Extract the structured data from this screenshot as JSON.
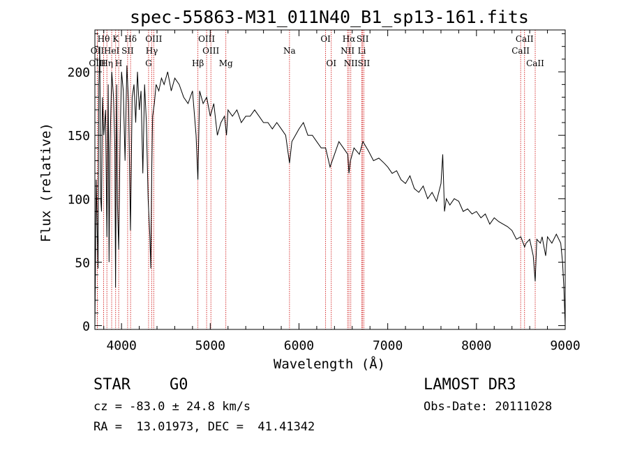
{
  "chart_data": {
    "type": "line",
    "title": "spec-55863-M31_011N40_B1_sp13-161.fits",
    "xlabel": "Wavelength (Å)",
    "ylabel": "Flux (relative)",
    "xlim": [
      3700,
      9000
    ],
    "ylim": [
      -3,
      233
    ],
    "xticks": [
      4000,
      5000,
      6000,
      7000,
      8000,
      9000
    ],
    "xtick_labels": [
      "4000",
      "5000",
      "6000",
      "7000",
      "8000",
      "9000"
    ],
    "yticks": [
      0,
      50,
      100,
      150,
      200
    ],
    "ytick_labels": [
      "0",
      "50",
      "100",
      "150",
      "200"
    ],
    "grid": false,
    "series": [
      {
        "name": "flux",
        "color": "#000000",
        "x": [
          3700,
          3715,
          3725,
          3735,
          3745,
          3755,
          3765,
          3775,
          3785,
          3800,
          3820,
          3835,
          3850,
          3860,
          3870,
          3890,
          3910,
          3925,
          3933,
          3945,
          3955,
          3968,
          3985,
          4000,
          4020,
          4040,
          4060,
          4080,
          4101,
          4120,
          4140,
          4160,
          4180,
          4200,
          4220,
          4240,
          4260,
          4280,
          4300,
          4320,
          4330,
          4340,
          4350,
          4370,
          4390,
          4420,
          4450,
          4480,
          4520,
          4560,
          4600,
          4650,
          4700,
          4750,
          4800,
          4840,
          4861,
          4880,
          4920,
          4960,
          5000,
          5040,
          5080,
          5120,
          5160,
          5183,
          5200,
          5250,
          5300,
          5350,
          5400,
          5450,
          5500,
          5550,
          5600,
          5650,
          5700,
          5750,
          5800,
          5850,
          5893,
          5920,
          5960,
          6000,
          6050,
          6100,
          6150,
          6200,
          6250,
          6300,
          6350,
          6400,
          6450,
          6500,
          6550,
          6563,
          6580,
          6620,
          6680,
          6720,
          6780,
          6840,
          6900,
          6960,
          7000,
          7050,
          7100,
          7150,
          7200,
          7250,
          7300,
          7350,
          7400,
          7450,
          7500,
          7550,
          7600,
          7620,
          7640,
          7660,
          7700,
          7750,
          7800,
          7850,
          7900,
          7950,
          8000,
          8050,
          8100,
          8150,
          8200,
          8250,
          8300,
          8350,
          8400,
          8450,
          8500,
          8542,
          8560,
          8600,
          8640,
          8662,
          8680,
          8720,
          8740,
          8780,
          8800,
          8820,
          8850,
          8900,
          8950,
          8970,
          8985,
          9000
        ],
        "values": [
          0,
          115,
          80,
          45,
          190,
          220,
          100,
          90,
          180,
          150,
          170,
          70,
          190,
          50,
          140,
          200,
          180,
          140,
          30,
          190,
          95,
          60,
          150,
          200,
          185,
          130,
          205,
          175,
          75,
          180,
          190,
          160,
          200,
          170,
          185,
          120,
          190,
          160,
          100,
          70,
          45,
          120,
          165,
          175,
          190,
          185,
          195,
          190,
          200,
          185,
          195,
          190,
          180,
          175,
          185,
          150,
          115,
          185,
          175,
          180,
          165,
          175,
          150,
          160,
          165,
          150,
          170,
          165,
          170,
          160,
          165,
          165,
          170,
          165,
          160,
          160,
          155,
          160,
          155,
          150,
          128,
          145,
          150,
          155,
          160,
          150,
          150,
          145,
          140,
          140,
          125,
          135,
          145,
          140,
          135,
          120,
          130,
          140,
          135,
          145,
          138,
          130,
          132,
          128,
          125,
          120,
          122,
          115,
          112,
          118,
          108,
          105,
          110,
          100,
          105,
          98,
          112,
          135,
          90,
          100,
          95,
          100,
          98,
          90,
          92,
          88,
          90,
          85,
          88,
          80,
          85,
          82,
          80,
          78,
          75,
          68,
          70,
          62,
          65,
          68,
          55,
          35,
          68,
          65,
          70,
          55,
          70,
          68,
          65,
          72,
          65,
          50,
          30,
          0
        ]
      }
    ],
    "lines": [
      {
        "label": "Hθ",
        "wave": 3798,
        "row": 0
      },
      {
        "label": "OII",
        "wave": 3727,
        "row": 1
      },
      {
        "label": "OIII",
        "wave": 3727,
        "row": 2
      },
      {
        "label": "K",
        "wave": 3934,
        "row": 0
      },
      {
        "label": "HeI",
        "wave": 3889,
        "row": 1
      },
      {
        "label": "Hη",
        "wave": 3835,
        "row": 2
      },
      {
        "label": "H",
        "wave": 3968,
        "row": 2
      },
      {
        "label": "Hδ",
        "wave": 4102,
        "row": 0
      },
      {
        "label": "SII",
        "wave": 4069,
        "row": 1
      },
      {
        "label": "OIII",
        "wave": 4363,
        "row": 0
      },
      {
        "label": "Hγ",
        "wave": 4341,
        "row": 1
      },
      {
        "label": "G",
        "wave": 4305,
        "row": 2
      },
      {
        "label": "Hβ",
        "wave": 4861,
        "row": 2
      },
      {
        "label": "OIII",
        "wave": 4959,
        "row": 0
      },
      {
        "label": "OIII",
        "wave": 5007,
        "row": 1
      },
      {
        "label": "Mg",
        "wave": 5176,
        "row": 2
      },
      {
        "label": "Na",
        "wave": 5893,
        "row": 1
      },
      {
        "label": "OI",
        "wave": 6300,
        "row": 0
      },
      {
        "label": "OI",
        "wave": 6364,
        "row": 2
      },
      {
        "label": "Hα",
        "wave": 6563,
        "row": 0
      },
      {
        "label": "NII",
        "wave": 6548,
        "row": 1
      },
      {
        "label": "NII",
        "wave": 6584,
        "row": 2
      },
      {
        "label": "SII",
        "wave": 6717,
        "row": 0
      },
      {
        "label": "Li",
        "wave": 6708,
        "row": 1
      },
      {
        "label": "SII",
        "wave": 6731,
        "row": 2
      },
      {
        "label": "CaII",
        "wave": 8542,
        "row": 0
      },
      {
        "label": "CaII",
        "wave": 8498,
        "row": 1
      },
      {
        "label": "CaII",
        "wave": 8662,
        "row": 2
      }
    ],
    "line_color": "#cc0000"
  },
  "info": {
    "object_class": "STAR",
    "subclass": "G0",
    "survey": "LAMOST DR3",
    "redshift": "cz = -83.0 ± 24.8 km/s",
    "obs_date": "Obs-Date: 20111028",
    "coords": "RA =  13.01973, DEC =  41.41342"
  }
}
